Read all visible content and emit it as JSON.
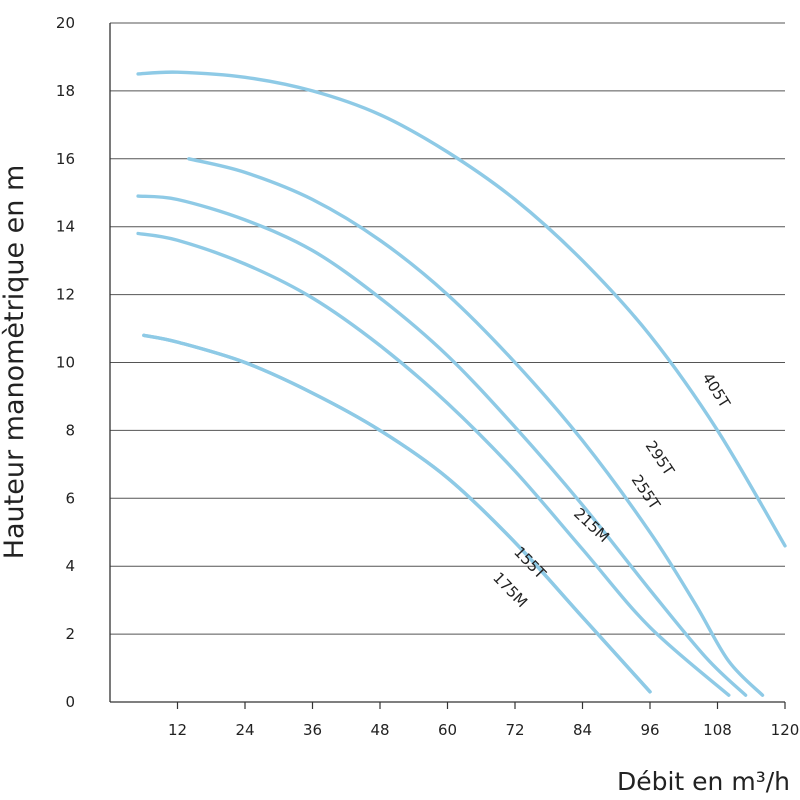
{
  "chart_data": {
    "type": "line",
    "title": "",
    "xlabel": "Débit en m³/h",
    "ylabel": "Hauteur manomètrique en m",
    "xlim": [
      0,
      120
    ],
    "ylim": [
      0,
      20
    ],
    "x_ticks": [
      12,
      24,
      36,
      48,
      60,
      72,
      84,
      96,
      108,
      120
    ],
    "y_ticks": [
      0,
      2,
      4,
      6,
      8,
      10,
      12,
      14,
      16,
      18,
      20
    ],
    "grid": "horizontal",
    "line_color": "#8ecae6",
    "series": [
      {
        "name": "405T",
        "x": [
          5,
          12,
          24,
          36,
          48,
          60,
          72,
          84,
          96,
          108,
          120
        ],
        "y": [
          18.5,
          18.55,
          18.4,
          18.0,
          17.3,
          16.2,
          14.8,
          13.0,
          10.8,
          8.0,
          4.6
        ]
      },
      {
        "name": "295T",
        "x": [
          14,
          24,
          36,
          48,
          60,
          72,
          84,
          96,
          104,
          110,
          116
        ],
        "y": [
          16.0,
          15.6,
          14.8,
          13.6,
          12.0,
          10.0,
          7.7,
          5.0,
          2.9,
          1.2,
          0.2
        ]
      },
      {
        "name": "255T",
        "x": [
          5,
          12,
          24,
          36,
          48,
          60,
          72,
          84,
          96,
          106,
          113
        ],
        "y": [
          14.9,
          14.8,
          14.2,
          13.3,
          11.9,
          10.2,
          8.1,
          5.8,
          3.3,
          1.3,
          0.2
        ]
      },
      {
        "name": "215M",
        "x": [
          5,
          12,
          24,
          36,
          48,
          60,
          72,
          84,
          96,
          110
        ],
        "y": [
          13.8,
          13.6,
          12.9,
          11.9,
          10.5,
          8.8,
          6.8,
          4.5,
          2.2,
          0.2
        ]
      },
      {
        "name": "155T",
        "x": [
          6,
          12,
          24,
          36,
          48,
          60,
          72,
          84,
          96
        ],
        "y": [
          10.8,
          10.6,
          10.0,
          9.1,
          8.0,
          6.6,
          4.7,
          2.5,
          0.3
        ]
      },
      {
        "name": "175M",
        "x": [
          6,
          12,
          24,
          36,
          48,
          60,
          72,
          84,
          96
        ],
        "y": [
          10.8,
          10.6,
          10.0,
          9.1,
          8.0,
          6.6,
          4.7,
          2.5,
          0.3
        ]
      }
    ],
    "labels": [
      {
        "text": "405T",
        "x": 107,
        "y": 9.1,
        "angle": 58
      },
      {
        "text": "295T",
        "x": 97,
        "y": 7.1,
        "angle": 56
      },
      {
        "text": "255T",
        "x": 94.5,
        "y": 6.1,
        "angle": 56
      },
      {
        "text": "215M",
        "x": 85,
        "y": 5.1,
        "angle": 43
      },
      {
        "text": "155T",
        "x": 74,
        "y": 4.0,
        "angle": 46
      },
      {
        "text": "175M",
        "x": 70.5,
        "y": 3.2,
        "angle": 46
      }
    ]
  }
}
